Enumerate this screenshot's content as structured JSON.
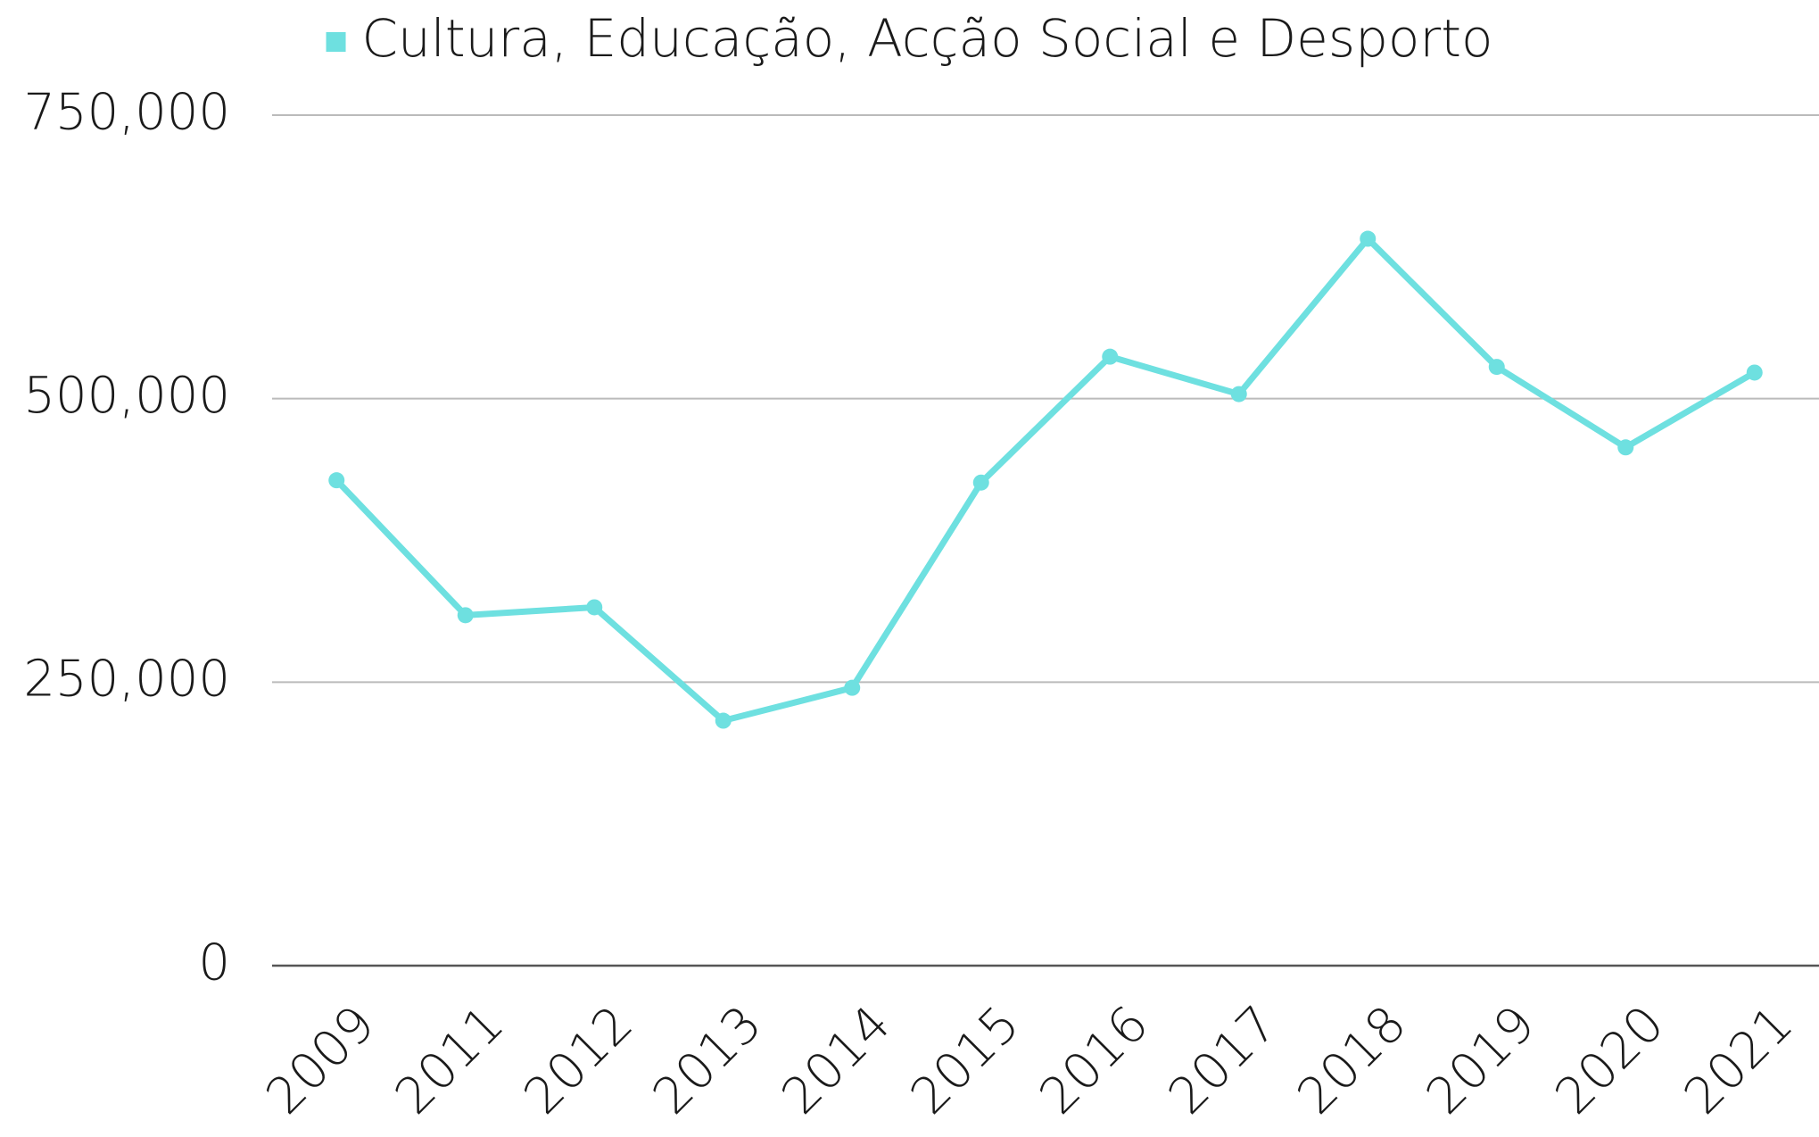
{
  "chart_data": {
    "type": "line",
    "categories": [
      "2009",
      "2011",
      "2012",
      "2013",
      "2014",
      "2015",
      "2016",
      "2017",
      "2018",
      "2019",
      "2020",
      "2021"
    ],
    "series": [
      {
        "name": "Cultura, Educação, Acção Social e Desporto",
        "color": "#6ee0e0",
        "values": [
          428000,
          309000,
          316000,
          216000,
          245000,
          426000,
          537000,
          504000,
          641000,
          528000,
          457000,
          523000
        ]
      }
    ],
    "ylim": [
      0,
      750000
    ],
    "yticks": [
      0,
      {
        "value": 250000,
        "label": "250,000"
      },
      {
        "value": 500000,
        "label": "500,000"
      },
      {
        "value": 750000,
        "label": "750,000"
      }
    ],
    "grid": true,
    "legend": "top"
  }
}
